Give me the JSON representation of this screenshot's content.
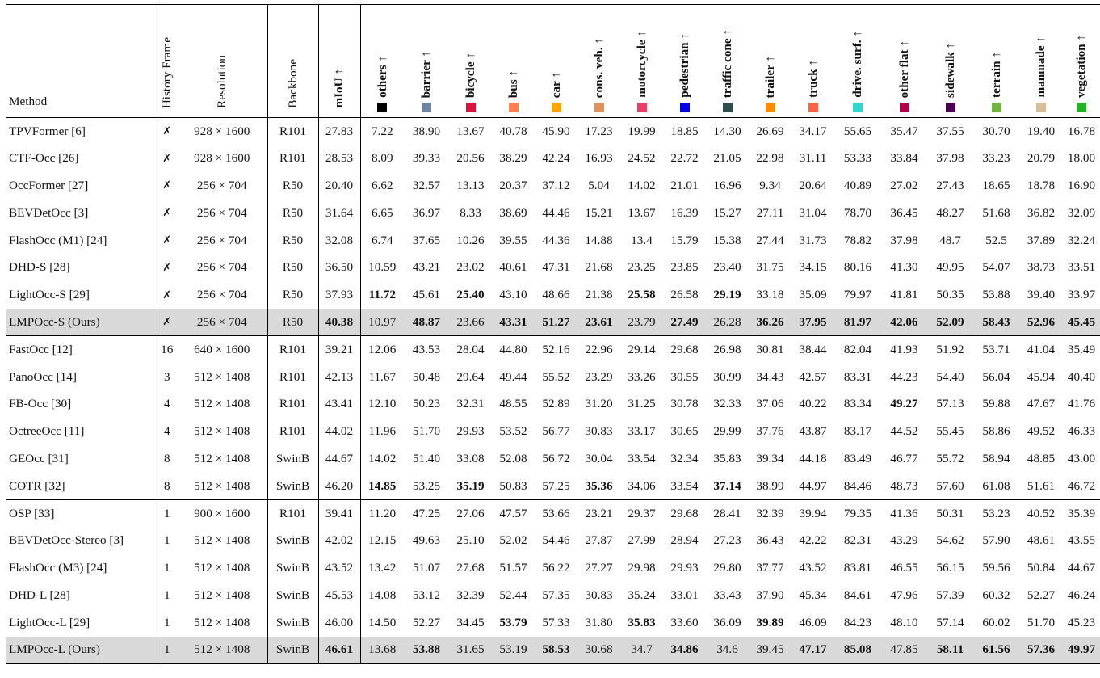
{
  "header": {
    "method": "Method",
    "history": "History Frame",
    "resolution": "Resolution",
    "backbone": "Backbone",
    "miou": "mIoU ↑"
  },
  "categories": [
    {
      "label": "others ↑",
      "color": "#000000"
    },
    {
      "label": "barrier ↑",
      "color": "#6f84a0"
    },
    {
      "label": "bicycle ↑",
      "color": "#dc143c"
    },
    {
      "label": "bus ↑",
      "color": "#ff7f50"
    },
    {
      "label": "car ↑",
      "color": "#ffa500"
    },
    {
      "label": "cons. veh. ↑",
      "color": "#e0925a"
    },
    {
      "label": "motorcycle ↑",
      "color": "#ec3c6a"
    },
    {
      "label": "pedestrian ↑",
      "color": "#0000e6"
    },
    {
      "label": "traffic cone ↑",
      "color": "#2f4f4f"
    },
    {
      "label": "trailer ↑",
      "color": "#ff8c00"
    },
    {
      "label": "truck ↑",
      "color": "#ff6347"
    },
    {
      "label": "drive. surf. ↑",
      "color": "#33d6cc"
    },
    {
      "label": "other flat ↑",
      "color": "#af004b"
    },
    {
      "label": "sidewalk ↑",
      "color": "#4b0050"
    },
    {
      "label": "terrain ↑",
      "color": "#70b440"
    },
    {
      "label": "manmade ↑",
      "color": "#d8bf97"
    },
    {
      "label": "vegetation ↑",
      "color": "#22b322"
    }
  ],
  "rows": [
    {
      "method": "TPVFormer [6]",
      "hist": "✗",
      "res": "928 × 1600",
      "bb": "R101",
      "miou": "27.83",
      "vals": [
        "7.22",
        "38.90",
        "13.67",
        "40.78",
        "45.90",
        "17.23",
        "19.99",
        "18.85",
        "14.30",
        "26.69",
        "34.17",
        "55.65",
        "35.47",
        "37.55",
        "30.70",
        "19.40",
        "16.78"
      ],
      "bold": [],
      "boldMiou": false
    },
    {
      "method": "CTF-Occ [26]",
      "hist": "✗",
      "res": "928 × 1600",
      "bb": "R101",
      "miou": "28.53",
      "vals": [
        "8.09",
        "39.33",
        "20.56",
        "38.29",
        "42.24",
        "16.93",
        "24.52",
        "22.72",
        "21.05",
        "22.98",
        "31.11",
        "53.33",
        "33.84",
        "37.98",
        "33.23",
        "20.79",
        "18.00"
      ],
      "bold": [],
      "boldMiou": false
    },
    {
      "method": "OccFormer [27]",
      "hist": "✗",
      "res": "256 × 704",
      "bb": "R50",
      "miou": "20.40",
      "vals": [
        "6.62",
        "32.57",
        "13.13",
        "20.37",
        "37.12",
        "5.04",
        "14.02",
        "21.01",
        "16.96",
        "9.34",
        "20.64",
        "40.89",
        "27.02",
        "27.43",
        "18.65",
        "18.78",
        "16.90"
      ],
      "bold": [],
      "boldMiou": false
    },
    {
      "method": "BEVDetOcc [3]",
      "hist": "✗",
      "res": "256 × 704",
      "bb": "R50",
      "miou": "31.64",
      "vals": [
        "6.65",
        "36.97",
        "8.33",
        "38.69",
        "44.46",
        "15.21",
        "13.67",
        "16.39",
        "15.27",
        "27.11",
        "31.04",
        "78.70",
        "36.45",
        "48.27",
        "51.68",
        "36.82",
        "32.09"
      ],
      "bold": [],
      "boldMiou": false
    },
    {
      "method": "FlashOcc (M1) [24]",
      "hist": "✗",
      "res": "256 × 704",
      "bb": "R50",
      "miou": "32.08",
      "vals": [
        "6.74",
        "37.65",
        "10.26",
        "39.55",
        "44.36",
        "14.88",
        "13.4",
        "15.79",
        "15.38",
        "27.44",
        "31.73",
        "78.82",
        "37.98",
        "48.7",
        "52.5",
        "37.89",
        "32.24"
      ],
      "bold": [],
      "boldMiou": false
    },
    {
      "method": "DHD-S [28]",
      "hist": "✗",
      "res": "256 × 704",
      "bb": "R50",
      "miou": "36.50",
      "vals": [
        "10.59",
        "43.21",
        "23.02",
        "40.61",
        "47.31",
        "21.68",
        "23.25",
        "23.85",
        "23.40",
        "31.75",
        "34.15",
        "80.16",
        "41.30",
        "49.95",
        "54.07",
        "38.73",
        "33.51"
      ],
      "bold": [],
      "boldMiou": false
    },
    {
      "method": "LightOcc-S [29]",
      "hist": "✗",
      "res": "256 × 704",
      "bb": "R50",
      "miou": "37.93",
      "vals": [
        "11.72",
        "45.61",
        "25.40",
        "43.10",
        "48.66",
        "21.38",
        "25.58",
        "26.58",
        "29.19",
        "33.18",
        "35.09",
        "79.97",
        "41.81",
        "50.35",
        "53.88",
        "39.40",
        "33.97"
      ],
      "bold": [
        0,
        2,
        6,
        8
      ],
      "boldMiou": false
    },
    {
      "method": "LMPOcc-S (Ours)",
      "hist": "✗",
      "res": "256 × 704",
      "bb": "R50",
      "miou": "40.38",
      "vals": [
        "10.97",
        "48.87",
        "23.66",
        "43.31",
        "51.27",
        "23.61",
        "23.79",
        "27.49",
        "26.28",
        "36.26",
        "37.95",
        "81.97",
        "42.06",
        "52.09",
        "58.43",
        "52.96",
        "45.45"
      ],
      "bold": [
        1,
        3,
        4,
        5,
        7,
        9,
        10,
        11,
        12,
        13,
        14,
        15,
        16
      ],
      "boldMiou": true,
      "highlight": true
    },
    {
      "method": "FastOcc [12]",
      "hist": "16",
      "res": "640 × 1600",
      "bb": "R101",
      "miou": "39.21",
      "vals": [
        "12.06",
        "43.53",
        "28.04",
        "44.80",
        "52.16",
        "22.96",
        "29.14",
        "29.68",
        "26.98",
        "30.81",
        "38.44",
        "82.04",
        "41.93",
        "51.92",
        "53.71",
        "41.04",
        "35.49"
      ],
      "bold": [],
      "boldMiou": false,
      "sep": true
    },
    {
      "method": "PanoOcc [14]",
      "hist": "3",
      "res": "512 × 1408",
      "bb": "R101",
      "miou": "42.13",
      "vals": [
        "11.67",
        "50.48",
        "29.64",
        "49.44",
        "55.52",
        "23.29",
        "33.26",
        "30.55",
        "30.99",
        "34.43",
        "42.57",
        "83.31",
        "44.23",
        "54.40",
        "56.04",
        "45.94",
        "40.40"
      ],
      "bold": [],
      "boldMiou": false
    },
    {
      "method": "FB-Occ [30]",
      "hist": "4",
      "res": "512 × 1408",
      "bb": "R101",
      "miou": "43.41",
      "vals": [
        "12.10",
        "50.23",
        "32.31",
        "48.55",
        "52.89",
        "31.20",
        "31.25",
        "30.78",
        "32.33",
        "37.06",
        "40.22",
        "83.34",
        "49.27",
        "57.13",
        "59.88",
        "47.67",
        "41.76"
      ],
      "bold": [
        12
      ],
      "boldMiou": false
    },
    {
      "method": "OctreeOcc [11]",
      "hist": "4",
      "res": "512 × 1408",
      "bb": "R101",
      "miou": "44.02",
      "vals": [
        "11.96",
        "51.70",
        "29.93",
        "53.52",
        "56.77",
        "30.83",
        "33.17",
        "30.65",
        "29.99",
        "37.76",
        "43.87",
        "83.17",
        "44.52",
        "55.45",
        "58.86",
        "49.52",
        "46.33"
      ],
      "bold": [],
      "boldMiou": false
    },
    {
      "method": "GEOcc [31]",
      "hist": "8",
      "res": "512 × 1408",
      "bb": "SwinB",
      "miou": "44.67",
      "vals": [
        "14.02",
        "51.40",
        "33.08",
        "52.08",
        "56.72",
        "30.04",
        "33.54",
        "32.34",
        "35.83",
        "39.34",
        "44.18",
        "83.49",
        "46.77",
        "55.72",
        "58.94",
        "48.85",
        "43.00"
      ],
      "bold": [],
      "boldMiou": false
    },
    {
      "method": "COTR [32]",
      "hist": "8",
      "res": "512 × 1408",
      "bb": "SwinB",
      "miou": "46.20",
      "vals": [
        "14.85",
        "53.25",
        "35.19",
        "50.83",
        "57.25",
        "35.36",
        "34.06",
        "33.54",
        "37.14",
        "38.99",
        "44.97",
        "84.46",
        "48.73",
        "57.60",
        "61.08",
        "51.61",
        "46.72"
      ],
      "bold": [
        0,
        2,
        5,
        8
      ],
      "boldMiou": false
    },
    {
      "method": "OSP [33]",
      "hist": "1",
      "res": "900 × 1600",
      "bb": "R101",
      "miou": "39.41",
      "vals": [
        "11.20",
        "47.25",
        "27.06",
        "47.57",
        "53.66",
        "23.21",
        "29.37",
        "29.68",
        "28.41",
        "32.39",
        "39.94",
        "79.35",
        "41.36",
        "50.31",
        "53.23",
        "40.52",
        "35.39"
      ],
      "bold": [],
      "boldMiou": false,
      "sep": true
    },
    {
      "method": "BEVDetOcc-Stereo [3]",
      "hist": "1",
      "res": "512 × 1408",
      "bb": "SwinB",
      "miou": "42.02",
      "vals": [
        "12.15",
        "49.63",
        "25.10",
        "52.02",
        "54.46",
        "27.87",
        "27.99",
        "28.94",
        "27.23",
        "36.43",
        "42.22",
        "82.31",
        "43.29",
        "54.62",
        "57.90",
        "48.61",
        "43.55"
      ],
      "bold": [],
      "boldMiou": false
    },
    {
      "method": "FlashOcc (M3) [24]",
      "hist": "1",
      "res": "512 × 1408",
      "bb": "SwinB",
      "miou": "43.52",
      "vals": [
        "13.42",
        "51.07",
        "27.68",
        "51.57",
        "56.22",
        "27.27",
        "29.98",
        "29.93",
        "29.80",
        "37.77",
        "43.52",
        "83.81",
        "46.55",
        "56.15",
        "59.56",
        "50.84",
        "44.67"
      ],
      "bold": [],
      "boldMiou": false
    },
    {
      "method": "DHD-L [28]",
      "hist": "1",
      "res": "512 × 1408",
      "bb": "SwinB",
      "miou": "45.53",
      "vals": [
        "14.08",
        "53.12",
        "32.39",
        "52.44",
        "57.35",
        "30.83",
        "35.24",
        "33.01",
        "33.43",
        "37.90",
        "45.34",
        "84.61",
        "47.96",
        "57.39",
        "60.32",
        "52.27",
        "46.24"
      ],
      "bold": [],
      "boldMiou": false
    },
    {
      "method": "LightOcc-L [29]",
      "hist": "1",
      "res": "512 × 1408",
      "bb": "SwinB",
      "miou": "46.00",
      "vals": [
        "14.50",
        "52.27",
        "34.45",
        "53.79",
        "57.33",
        "31.80",
        "35.83",
        "33.60",
        "36.09",
        "39.89",
        "46.09",
        "84.23",
        "48.10",
        "57.14",
        "60.02",
        "51.70",
        "45.23"
      ],
      "bold": [
        3,
        6,
        9
      ],
      "boldMiou": false
    },
    {
      "method": "LMPOcc-L (Ours)",
      "hist": "1",
      "res": "512 × 1408",
      "bb": "SwinB",
      "miou": "46.61",
      "vals": [
        "13.68",
        "53.88",
        "31.65",
        "53.19",
        "58.53",
        "30.68",
        "34.7",
        "34.86",
        "34.6",
        "39.45",
        "47.17",
        "85.08",
        "47.85",
        "58.11",
        "61.56",
        "57.36",
        "49.97"
      ],
      "bold": [
        1,
        4,
        7,
        10,
        11,
        13,
        14,
        15,
        16
      ],
      "boldMiou": true,
      "highlight": true,
      "last": true
    }
  ]
}
